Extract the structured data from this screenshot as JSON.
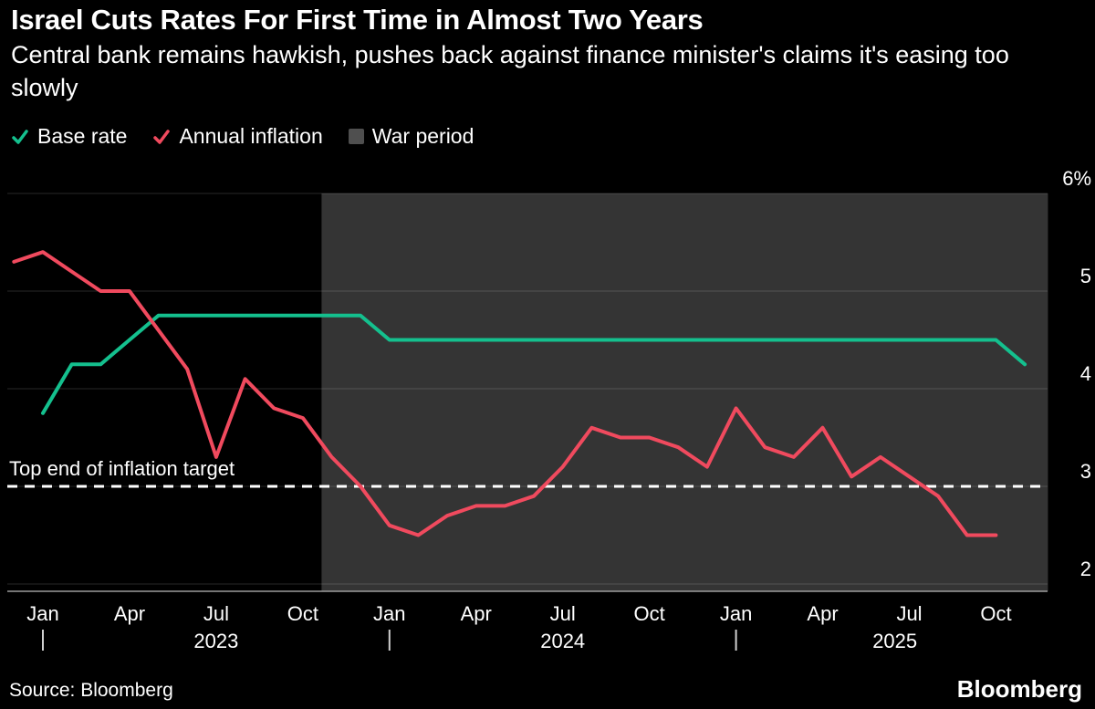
{
  "header": {
    "title": "Israel Cuts Rates For First Time in Almost Two Years",
    "subtitle": "Central bank remains hawkish, pushes back against finance minister's claims it's easing too slowly"
  },
  "legend": {
    "items": [
      {
        "label": "Base rate",
        "color": "#14c08e",
        "marker": "line"
      },
      {
        "label": "Annual inflation",
        "color": "#f04a5e",
        "marker": "line"
      },
      {
        "label": "War period",
        "color": "#4f4f4f",
        "marker": "box"
      }
    ]
  },
  "chart_data": {
    "type": "line",
    "x_unit": "month",
    "x_start": "Dec 2022",
    "x_end": "Nov 2025",
    "ylim": [
      2,
      6
    ],
    "grid": true,
    "legend_position": "top",
    "series": [
      {
        "name": "Base rate",
        "color": "#14c08e",
        "start_index": 1,
        "values": [
          3.75,
          4.25,
          4.25,
          4.5,
          4.75,
          4.75,
          4.75,
          4.75,
          4.75,
          4.75,
          4.75,
          4.75,
          4.5,
          4.5,
          4.5,
          4.5,
          4.5,
          4.5,
          4.5,
          4.5,
          4.5,
          4.5,
          4.5,
          4.5,
          4.5,
          4.5,
          4.5,
          4.5,
          4.5,
          4.5,
          4.5,
          4.5,
          4.5,
          4.5,
          4.25
        ]
      },
      {
        "name": "Annual inflation",
        "color": "#f04a5e",
        "start_index": 0,
        "values": [
          5.3,
          5.4,
          5.2,
          5.0,
          5.0,
          4.6,
          4.2,
          3.3,
          4.1,
          3.8,
          3.7,
          3.3,
          3.0,
          2.6,
          2.5,
          2.7,
          2.8,
          2.8,
          2.9,
          3.2,
          3.6,
          3.5,
          3.5,
          3.4,
          3.2,
          3.8,
          3.4,
          3.3,
          3.6,
          3.1,
          3.3,
          3.1,
          2.9,
          2.5,
          2.5
        ]
      }
    ],
    "target_line": {
      "label": "Top end of inflation target",
      "value": 3
    },
    "war_period": {
      "label": "War period",
      "color": "#343434",
      "start_index": 10.65,
      "end_index": 35.8
    },
    "y_ticks": [
      {
        "value": 2,
        "label": "2"
      },
      {
        "value": 3,
        "label": "3"
      },
      {
        "value": 4,
        "label": "4"
      },
      {
        "value": 5,
        "label": "5"
      },
      {
        "value": 6,
        "label": "6%"
      }
    ],
    "x_ticks": [
      {
        "index": 1,
        "label": "Jan"
      },
      {
        "index": 4,
        "label": "Apr"
      },
      {
        "index": 7,
        "label": "Jul"
      },
      {
        "index": 10,
        "label": "Oct"
      },
      {
        "index": 13,
        "label": "Jan"
      },
      {
        "index": 16,
        "label": "Apr"
      },
      {
        "index": 19,
        "label": "Jul"
      },
      {
        "index": 22,
        "label": "Oct"
      },
      {
        "index": 25,
        "label": "Jan"
      },
      {
        "index": 28,
        "label": "Apr"
      },
      {
        "index": 31,
        "label": "Jul"
      },
      {
        "index": 34,
        "label": "Oct"
      }
    ],
    "years": [
      {
        "label": "2023",
        "divider_index": 1,
        "center_index": 7
      },
      {
        "label": "2024",
        "divider_index": 13,
        "center_index": 19
      },
      {
        "label": "2025",
        "divider_index": 25,
        "center_index": 30.5
      }
    ]
  },
  "footer": {
    "source": "Source: Bloomberg",
    "brand": "Bloomberg"
  }
}
